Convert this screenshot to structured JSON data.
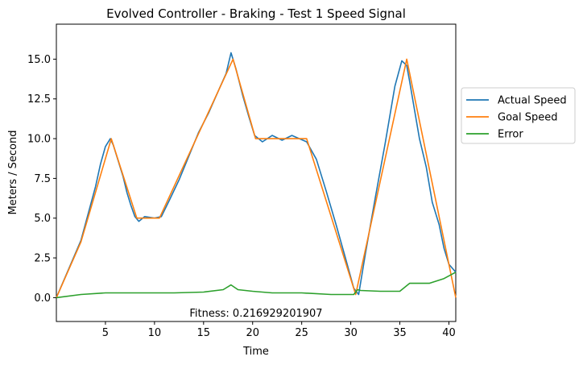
{
  "chart_data": {
    "type": "line",
    "title": "Evolved Controller - Braking - Test 1  Speed Signal",
    "xlabel": "Time",
    "ylabel": "Meters / Second",
    "xlim": [
      0,
      40.7
    ],
    "ylim": [
      -1.5,
      17.2
    ],
    "xticks": [
      5,
      10,
      15,
      20,
      25,
      30,
      35,
      40
    ],
    "yticks": [
      0.0,
      2.5,
      5.0,
      7.5,
      10.0,
      12.5,
      15.0
    ],
    "ytick_labels": [
      "0.0",
      "2.5",
      "5.0",
      "7.5",
      "10.0",
      "12.5",
      "15.0"
    ],
    "grid": false,
    "legend_position": "outside-right",
    "annotation": "Fitness: 0.216929201907",
    "series": [
      {
        "name": "Actual Speed",
        "color": "#1f77b4",
        "x": [
          0,
          2.5,
          4.0,
          4.5,
          5.0,
          5.5,
          5.8,
          6.3,
          6.8,
          7.2,
          7.6,
          8.0,
          8.4,
          9.0,
          10.0,
          10.7,
          11.5,
          12.5,
          13.5,
          14.5,
          15.5,
          16.5,
          17.3,
          17.8,
          18.3,
          19.0,
          19.6,
          20.2,
          21.0,
          22.0,
          23.0,
          24.0,
          25.5,
          26.5,
          27.5,
          28.5,
          29.5,
          30.3,
          30.8,
          31.5,
          32.5,
          33.5,
          34.5,
          35.2,
          35.7,
          36.0,
          36.5,
          37.0,
          37.7,
          38.3,
          39.0,
          39.5,
          40.0,
          40.7
        ],
        "y": [
          0.0,
          3.6,
          7.0,
          8.4,
          9.5,
          10.0,
          9.6,
          8.6,
          7.6,
          6.6,
          5.8,
          5.1,
          4.8,
          5.1,
          5.0,
          5.1,
          6.1,
          7.4,
          8.9,
          10.4,
          11.6,
          13.0,
          14.1,
          15.4,
          14.4,
          12.7,
          11.4,
          10.2,
          9.8,
          10.2,
          9.9,
          10.2,
          9.8,
          8.7,
          6.7,
          4.6,
          2.4,
          0.6,
          0.2,
          2.8,
          6.3,
          9.7,
          13.3,
          14.9,
          14.6,
          13.6,
          11.8,
          10.0,
          8.2,
          6.0,
          4.6,
          3.1,
          2.1,
          1.6
        ]
      },
      {
        "name": "Goal Speed",
        "color": "#ff7f0e",
        "x": [
          0,
          2.5,
          5.6,
          8.2,
          10.5,
          18.0,
          20.3,
          25.5,
          30.5,
          35.7,
          40.7
        ],
        "y": [
          0.0,
          3.5,
          10.0,
          5.0,
          5.0,
          15.0,
          10.0,
          10.0,
          0.2,
          15.0,
          0.0
        ]
      },
      {
        "name": "Error",
        "color": "#2ca02c",
        "x": [
          0,
          2.5,
          5.0,
          8.0,
          10.0,
          12.0,
          15.0,
          17.0,
          17.8,
          18.5,
          20.0,
          22.0,
          25.0,
          28.0,
          30.3,
          30.7,
          31.0,
          33.0,
          35.0,
          36.0,
          38.0,
          39.5,
          40.7
        ],
        "y": [
          0.0,
          0.2,
          0.3,
          0.3,
          0.3,
          0.3,
          0.35,
          0.5,
          0.8,
          0.5,
          0.4,
          0.3,
          0.3,
          0.2,
          0.2,
          0.5,
          0.45,
          0.4,
          0.4,
          0.9,
          0.9,
          1.2,
          1.6
        ]
      }
    ]
  }
}
